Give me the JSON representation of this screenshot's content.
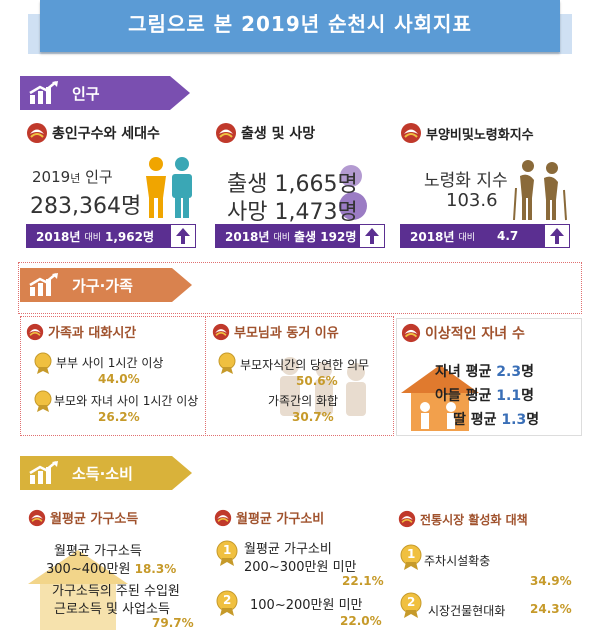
{
  "header": {
    "title": "그림으로 본 2019년 순천시 사회지표"
  },
  "colors": {
    "banner": "#5b9bd5",
    "population_tab": "#7a4fb0",
    "household_tab": "#d9824e",
    "income_tab": "#d9b23a",
    "purple_bar": "#5b2f91",
    "gold_text": "#c69a2a"
  },
  "population": {
    "tab_label": "인구",
    "total": {
      "heading": "총인구수와 세대수",
      "line1_prefix": "2019",
      "line1_unit": "년",
      "line1_suffix": "인구",
      "value": "283,364명",
      "bar_year": "2018년",
      "bar_small": "대비",
      "bar_value": "1,962명"
    },
    "births": {
      "heading": "출생 및 사망",
      "birth_label": "출생",
      "birth_value": "1,665명",
      "death_label": "사망",
      "death_value": "1,473명",
      "bar_year": "2018년",
      "bar_small": "대비",
      "bar_value": "출생 192명"
    },
    "aging": {
      "heading": "부양비및노령화지수",
      "label": "노령화 지수",
      "value": "103.6",
      "bar_year": "2018년",
      "bar_small": "대비",
      "bar_value": "4.7"
    }
  },
  "household": {
    "tab_label": "가구·가족",
    "conversation": {
      "heading": "가족과 대화시간",
      "item1": "부부 사이 1시간 이상",
      "item1_pct": "44.0%",
      "item2": "부모와 자녀 사이 1시간 이상",
      "item2_pct": "26.2%"
    },
    "cohabit": {
      "heading": "부모님과 동거 이유",
      "item1": "부모자식간의 당연한 의무",
      "item1_pct": "50.6%",
      "item2": "가족간의 화합",
      "item2_pct": "30.7%"
    },
    "children": {
      "heading": "이상적인 자녀 수",
      "row1_label": "자녀 평균",
      "row1_value": "2.3",
      "row2_label": "아들 평균",
      "row2_value": "1.1",
      "row3_label": "딸 평균",
      "row3_value": "1.3",
      "unit": "명"
    }
  },
  "income": {
    "tab_label": "소득·소비",
    "monthly_income": {
      "heading": "월평균 가구소득",
      "line1": "월평균 가구소득",
      "line2": "300~400만원",
      "line2_pct": "18.3%",
      "line3": "가구소득의 주된 수입원",
      "line4": "근로소득 및 사업소득",
      "line4_pct": "79.7%"
    },
    "monthly_spend": {
      "heading": "월평균 가구소비",
      "rank1": "1",
      "item1a": "월평균 가구소비",
      "item1b": "200~300만원 미만",
      "item1_pct": "22.1%",
      "rank2": "2",
      "item2": "100~200만원 미만",
      "item2_pct": "22.0%"
    },
    "market": {
      "heading": "전통시장 활성화 대책",
      "rank1": "1",
      "item1": "주차시설확충",
      "item1_pct": "34.9%",
      "rank2": "2",
      "item2": "시장건물현대화",
      "item2_pct": "24.3%"
    }
  }
}
